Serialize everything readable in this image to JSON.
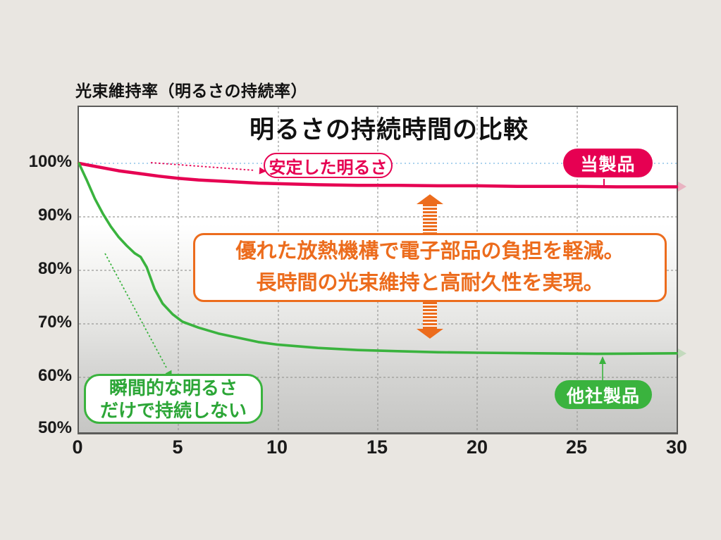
{
  "chart_data": {
    "type": "line",
    "title": "明るさの持続時間の比較",
    "ylabel": "光束維持率（明るさの持続率）",
    "xlabel": "",
    "xlim": [
      0,
      30
    ],
    "ylim": [
      50,
      100
    ],
    "x_ticks": [
      "0",
      "5",
      "10",
      "15",
      "20",
      "25",
      "30"
    ],
    "y_ticks": [
      "100%",
      "90%",
      "80%",
      "70%",
      "60%",
      "50%"
    ],
    "grid": true,
    "reference_line": {
      "y": 100,
      "color": "#8fc3e8",
      "style": "dotted"
    },
    "series": [
      {
        "name": "当製品",
        "color": "#e60052",
        "x": [
          0,
          1,
          2,
          3,
          4,
          5,
          6,
          7,
          8,
          9,
          10,
          12,
          14,
          16,
          18,
          20,
          22,
          25,
          27,
          30
        ],
        "values": [
          100,
          99.3,
          98.6,
          98.1,
          97.6,
          97.2,
          96.9,
          96.7,
          96.5,
          96.3,
          96.2,
          96.0,
          95.9,
          95.9,
          95.8,
          95.8,
          95.7,
          95.7,
          95.6,
          95.6
        ]
      },
      {
        "name": "他社製品",
        "color": "#3ab33e",
        "x": [
          0,
          0.4,
          0.8,
          1.2,
          1.6,
          2.0,
          2.4,
          2.8,
          3.1,
          3.4,
          3.8,
          4.2,
          4.7,
          5.2,
          6,
          7,
          8,
          9,
          10,
          12,
          14,
          16,
          18,
          20,
          23,
          26,
          30
        ],
        "values": [
          100,
          96.8,
          93.4,
          90.6,
          88.2,
          86.2,
          84.6,
          83.2,
          82.5,
          80.6,
          76.5,
          73.8,
          71.8,
          70.4,
          69.3,
          68.2,
          67.4,
          66.6,
          66.1,
          65.5,
          65.1,
          64.9,
          64.7,
          64.6,
          64.5,
          64.4,
          64.5
        ]
      }
    ],
    "annotations": [
      "安定した明るさ",
      "瞬間的な明るさだけで持続しない",
      "優れた放熱機構で電子部品の負担を軽減。長時間の光束維持と高耐久性を実現。"
    ]
  },
  "labels": {
    "axis_title": "光束維持率（明るさの持続率）",
    "chart_title": "明るさの持続時間の比較",
    "stable_brightness": "安定した明るさ",
    "our_product": "当製品",
    "other_product": "他社製品",
    "momentary_line1": "瞬間的な明るさ",
    "momentary_line2": "だけで持続しない",
    "callout_line1": "優れた放熱機構で電子部品の負担を軽減。",
    "callout_line2": "長時間の光束維持と高耐久性を実現。"
  },
  "colors": {
    "our_product_pink": "#e60052",
    "other_product_green": "#3ab33e",
    "callout_orange": "#ec6c1d",
    "reference_blue": "#8fc3e8",
    "canvas_background": "#e9e6e1"
  }
}
